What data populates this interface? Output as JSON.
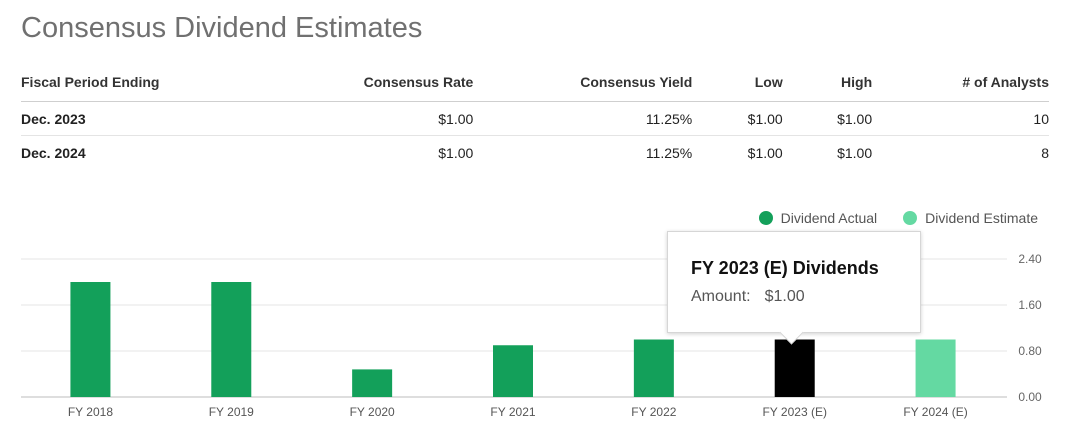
{
  "title": "Consensus Dividend Estimates",
  "table": {
    "headers": [
      "Fiscal Period Ending",
      "Consensus Rate",
      "Consensus Yield",
      "Low",
      "High",
      "# of Analysts"
    ],
    "rows": [
      [
        "Dec. 2023",
        "$1.00",
        "11.25%",
        "$1.00",
        "$1.00",
        "10"
      ],
      [
        "Dec. 2024",
        "$1.00",
        "11.25%",
        "$1.00",
        "$1.00",
        "8"
      ]
    ]
  },
  "legend": {
    "actual_label": "Dividend Actual",
    "estimate_label": "Dividend Estimate",
    "actual_color": "#13a05a",
    "estimate_color": "#64d9a2"
  },
  "tooltip": {
    "title": "FY 2023 (E) Dividends",
    "label": "Amount:",
    "value": "$1.00"
  },
  "chart_data": {
    "type": "bar",
    "categories": [
      "FY 2018",
      "FY 2019",
      "FY 2020",
      "FY 2021",
      "FY 2022",
      "FY 2023 (E)",
      "FY 2024 (E)"
    ],
    "values": [
      2.0,
      2.0,
      0.48,
      0.9,
      1.0,
      1.0,
      1.0
    ],
    "kind": [
      "actual",
      "actual",
      "actual",
      "actual",
      "actual",
      "estimate",
      "estimate"
    ],
    "highlighted_index": 5,
    "highlight_color": "#000000",
    "ylim": [
      0,
      2.4
    ],
    "yticks": [
      0,
      0.8,
      1.6,
      2.4
    ],
    "ytick_labels": [
      "0.00",
      "0.80",
      "1.60",
      "2.40"
    ],
    "y_axis_position": "right",
    "grid": true
  }
}
